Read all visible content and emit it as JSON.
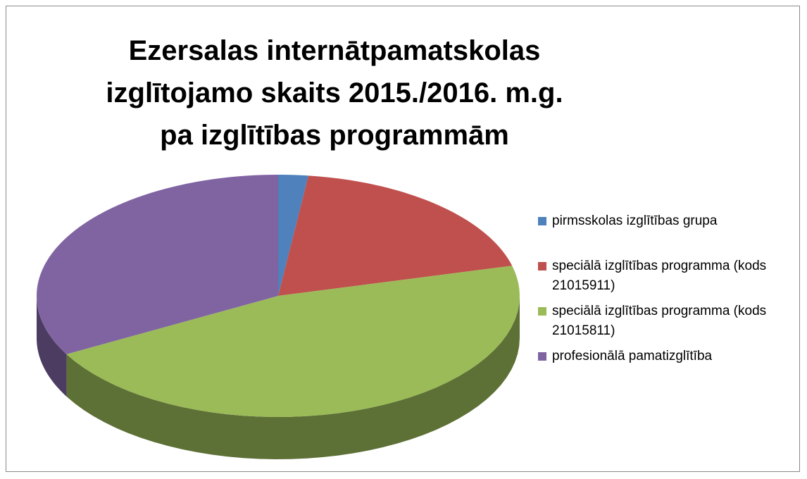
{
  "chart_data": {
    "type": "pie",
    "title": "Ezersalas internātpamatskolas izglītojamo skaits 2015./2016. m.g. pa izglītības programmām",
    "categories": [
      "pirmsskolas izglītības grupa",
      "speciālā izglītības programma (kods 21015911)",
      "speciālā izglītības programma (kods 21015811)",
      "profesionālā pamatizglītība"
    ],
    "values": [
      2,
      19,
      46,
      33
    ],
    "colors": [
      "#4f81bd",
      "#c0504d",
      "#9bbb59",
      "#8064a2"
    ],
    "legend": "right"
  }
}
